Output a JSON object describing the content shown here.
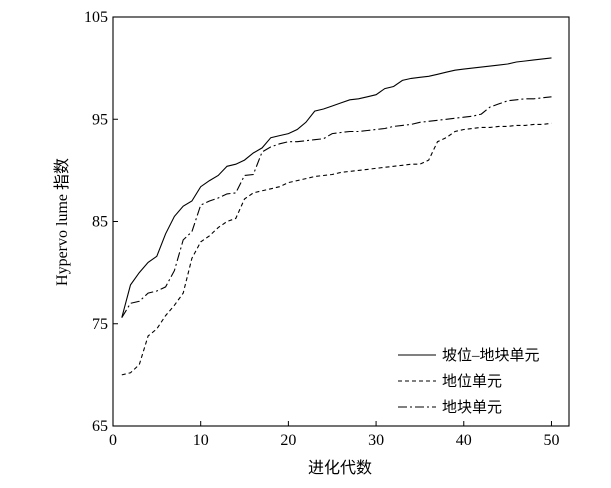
{
  "chart_data": {
    "type": "line",
    "title": "",
    "xlabel": "进化代数",
    "ylabel": "Hypervo lume 指数",
    "xlim": [
      0,
      52
    ],
    "ylim": [
      65,
      105
    ],
    "x_ticks": [
      0,
      10,
      20,
      30,
      40,
      50
    ],
    "x_tick_labels": [
      "0",
      "10",
      "20",
      "30",
      "40",
      "50"
    ],
    "y_ticks": [
      65,
      75,
      85,
      95,
      105
    ],
    "y_tick_labels": [
      "65",
      "75",
      "85",
      "95",
      "105"
    ],
    "grid": false,
    "legend_position": "lower-right",
    "series": [
      {
        "name": "坡位–地块单元",
        "dash": "solid",
        "x": [
          1,
          2,
          3,
          4,
          5,
          6,
          7,
          8,
          9,
          10,
          11,
          12,
          13,
          14,
          15,
          16,
          17,
          18,
          19,
          20,
          21,
          22,
          23,
          24,
          25,
          26,
          27,
          28,
          29,
          30,
          31,
          32,
          33,
          34,
          35,
          36,
          37,
          38,
          39,
          40,
          41,
          42,
          43,
          44,
          45,
          46,
          47,
          48,
          49,
          50
        ],
        "values": [
          75.6,
          78.8,
          80.0,
          81.0,
          81.6,
          83.8,
          85.5,
          86.5,
          87.0,
          88.4,
          89.0,
          89.5,
          90.4,
          90.6,
          91.0,
          91.7,
          92.2,
          93.2,
          93.4,
          93.6,
          94.0,
          94.7,
          95.8,
          96.0,
          96.3,
          96.6,
          96.9,
          97.0,
          97.2,
          97.4,
          98.0,
          98.2,
          98.8,
          99.0,
          99.1,
          99.2,
          99.4,
          99.6,
          99.8,
          99.9,
          100.0,
          100.1,
          100.2,
          100.3,
          100.4,
          100.6,
          100.7,
          100.8,
          100.9,
          101.0
        ]
      },
      {
        "name": "地位单元",
        "dash": "dashed",
        "x": [
          1,
          2,
          3,
          4,
          5,
          6,
          7,
          8,
          9,
          10,
          11,
          12,
          13,
          14,
          15,
          16,
          17,
          18,
          19,
          20,
          21,
          22,
          23,
          24,
          25,
          26,
          27,
          28,
          29,
          30,
          31,
          32,
          33,
          34,
          35,
          36,
          37,
          38,
          39,
          40,
          41,
          42,
          43,
          44,
          45,
          46,
          47,
          48,
          49,
          50
        ],
        "values": [
          70.0,
          70.2,
          71.0,
          73.8,
          74.5,
          75.8,
          76.8,
          78.0,
          81.4,
          83.0,
          83.6,
          84.4,
          85.0,
          85.3,
          87.2,
          87.8,
          88.0,
          88.2,
          88.4,
          88.8,
          89.0,
          89.2,
          89.4,
          89.5,
          89.6,
          89.8,
          89.9,
          90.0,
          90.1,
          90.2,
          90.3,
          90.4,
          90.5,
          90.6,
          90.6,
          91.0,
          92.8,
          93.2,
          93.8,
          94.0,
          94.1,
          94.2,
          94.2,
          94.3,
          94.3,
          94.4,
          94.4,
          94.5,
          94.5,
          94.6
        ]
      },
      {
        "name": "地块单元",
        "dash": "dashdot",
        "x": [
          1,
          2,
          3,
          4,
          5,
          6,
          7,
          8,
          9,
          10,
          11,
          12,
          13,
          14,
          15,
          16,
          17,
          18,
          19,
          20,
          21,
          22,
          23,
          24,
          25,
          26,
          27,
          28,
          29,
          30,
          31,
          32,
          33,
          34,
          35,
          36,
          37,
          38,
          39,
          40,
          41,
          42,
          43,
          44,
          45,
          46,
          47,
          48,
          49,
          50
        ],
        "values": [
          75.6,
          77.0,
          77.2,
          78.0,
          78.2,
          78.6,
          80.2,
          83.2,
          84.0,
          86.6,
          87.0,
          87.3,
          87.7,
          87.8,
          89.5,
          89.6,
          91.8,
          92.3,
          92.6,
          92.8,
          92.8,
          92.9,
          93.0,
          93.1,
          93.6,
          93.7,
          93.8,
          93.8,
          93.9,
          94.0,
          94.1,
          94.3,
          94.4,
          94.5,
          94.7,
          94.8,
          94.9,
          95.0,
          95.1,
          95.2,
          95.3,
          95.5,
          96.2,
          96.5,
          96.8,
          96.9,
          97.0,
          97.0,
          97.1,
          97.2
        ]
      }
    ]
  }
}
